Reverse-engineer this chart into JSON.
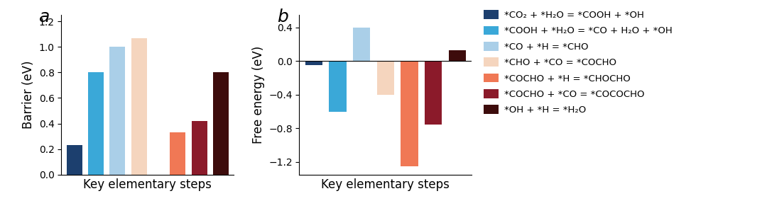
{
  "panel_a": {
    "title": "a",
    "values": [
      0.23,
      0.8,
      1.0,
      1.07,
      0.33,
      0.42,
      0.8
    ],
    "x_positions": [
      0,
      1,
      2,
      3,
      4.8,
      5.8,
      6.8
    ],
    "colors": [
      "#1c3f6e",
      "#3aa8d8",
      "#aacfe8",
      "#f5d5be",
      "#f07855",
      "#8b1a2a",
      "#3d0c0c"
    ],
    "xlabel": "Key elementary steps",
    "ylabel": "Barrier (eV)",
    "ylim": [
      0.0,
      1.25
    ],
    "xlim": [
      -0.6,
      7.4
    ],
    "yticks": [
      0.0,
      0.2,
      0.4,
      0.6,
      0.8,
      1.0,
      1.2
    ]
  },
  "panel_b": {
    "title": "b",
    "values": [
      -0.05,
      -0.6,
      0.4,
      -0.4,
      -1.25,
      -0.75,
      0.13
    ],
    "x_positions": [
      0,
      1,
      2,
      3,
      4,
      5,
      6
    ],
    "colors": [
      "#1c3f6e",
      "#3aa8d8",
      "#aacfe8",
      "#f5d5be",
      "#f07855",
      "#8b1a2a",
      "#3d0c0c"
    ],
    "xlabel": "Key elementary steps",
    "ylabel": "Free energy (eV)",
    "ylim": [
      -1.35,
      0.55
    ],
    "xlim": [
      -0.6,
      6.6
    ],
    "yticks": [
      -1.2,
      -0.8,
      -0.4,
      0.0,
      0.4
    ]
  },
  "legend_labels": [
    "*CO₂ + *H₂O = *COOH + *OH",
    "*COOH + *H₂O = *CO + H₂O + *OH",
    "*CO + *H = *CHO",
    "*CHO + *CO = *COCHO",
    "*COCHO + *H = *CHOCHO",
    "*COCHO + *CO = *COCOCHO",
    "*OH + *H = *H₂O"
  ],
  "legend_colors": [
    "#1c3f6e",
    "#3aa8d8",
    "#aacfe8",
    "#f5d5be",
    "#f07855",
    "#8b1a2a",
    "#3d0c0c"
  ],
  "background_color": "#ffffff",
  "label_fontsize": 12,
  "tick_fontsize": 10,
  "legend_fontsize": 9.5,
  "bar_width": 0.72
}
